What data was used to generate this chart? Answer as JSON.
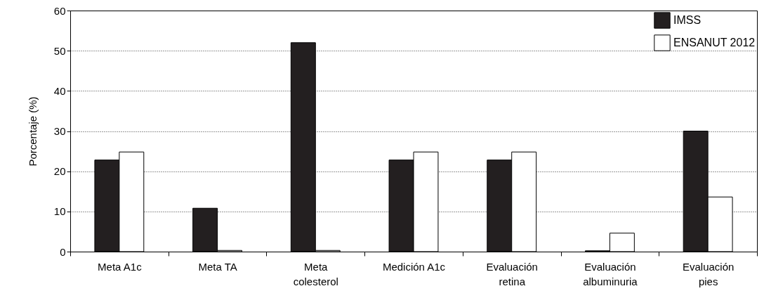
{
  "chart_data": {
    "type": "bar",
    "ylabel": "Porcentaje (%)",
    "categories": [
      "Meta A1c",
      "Meta TA",
      "Meta colesterol",
      "Medición A1c",
      "Evaluación retina",
      "Evaluación albuminuria",
      "Evaluación pies"
    ],
    "series": [
      {
        "name": "IMSS",
        "color": "#231f20",
        "values": [
          22.8,
          10.8,
          52,
          22.8,
          22.8,
          0.2,
          30
        ]
      },
      {
        "name": "ENSANUT 2012",
        "color": "#ffffff",
        "values": [
          24.8,
          0.3,
          0.3,
          24.8,
          24.8,
          4.6,
          13.6
        ]
      }
    ],
    "ylim": [
      0,
      60
    ],
    "yticks": [
      0,
      10,
      20,
      30,
      40,
      50,
      60
    ],
    "grid": "y",
    "legend": "top right"
  }
}
